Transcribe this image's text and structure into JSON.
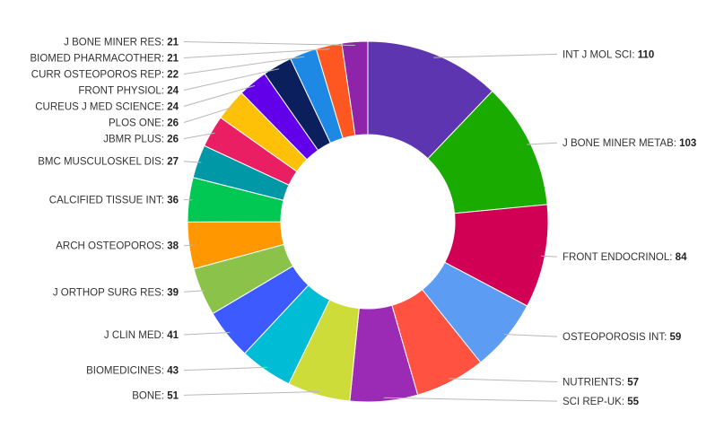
{
  "chart_data": {
    "type": "pie",
    "variant": "donut",
    "start_angle_deg": 0,
    "direction": "clockwise",
    "legend": "none",
    "slices": [
      {
        "label": "INT J MOL SCI",
        "value": 110,
        "color": "#5e35b1"
      },
      {
        "label": "J BONE MINER METAB",
        "value": 103,
        "color": "#1aab00"
      },
      {
        "label": "FRONT ENDOCRINOL",
        "value": 84,
        "color": "#d10055"
      },
      {
        "label": "OSTEOPOROSIS INT",
        "value": 59,
        "color": "#5c9cf2"
      },
      {
        "label": "NUTRIENTS",
        "value": 57,
        "color": "#ff5241"
      },
      {
        "label": "SCI REP-UK",
        "value": 55,
        "color": "#9b2bb5"
      },
      {
        "label": "BONE",
        "value": 51,
        "color": "#cddc39"
      },
      {
        "label": "BIOMEDICINES",
        "value": 43,
        "color": "#00bcd4"
      },
      {
        "label": "J CLIN MED",
        "value": 41,
        "color": "#3d5afe"
      },
      {
        "label": "J ORTHOP SURG RES",
        "value": 39,
        "color": "#8bc34a"
      },
      {
        "label": "ARCH OSTEOPOROS",
        "value": 38,
        "color": "#ff9800"
      },
      {
        "label": "CALCIFIED TISSUE INT",
        "value": 36,
        "color": "#00c853"
      },
      {
        "label": "BMC MUSCULOSKEL DIS",
        "value": 27,
        "color": "#0097a7"
      },
      {
        "label": "JBMR PLUS",
        "value": 26,
        "color": "#e91e63"
      },
      {
        "label": "PLOS ONE",
        "value": 26,
        "color": "#ffc107"
      },
      {
        "label": "CUREUS J MED SCIENCE",
        "value": 24,
        "color": "#6200ea"
      },
      {
        "label": "FRONT PHYSIOL",
        "value": 24,
        "color": "#0a1f5c"
      },
      {
        "label": "CURR OSTEOPOROS REP",
        "value": 22,
        "color": "#1e88e5"
      },
      {
        "label": "BIOMED PHARMACOTHER",
        "value": 21,
        "color": "#ff5722"
      },
      {
        "label": "J BONE MINER RES",
        "value": 21,
        "color": "#8e24aa"
      }
    ]
  }
}
